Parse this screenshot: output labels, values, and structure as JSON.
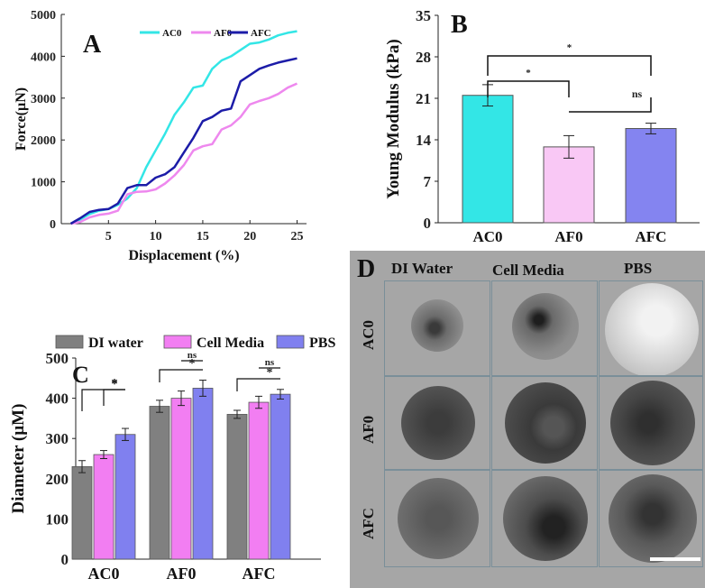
{
  "panels": {
    "a": {
      "letter": "A"
    },
    "b": {
      "letter": "B"
    },
    "c": {
      "letter": "C"
    },
    "d": {
      "letter": "D"
    }
  },
  "chart_data": [
    {
      "id": "A",
      "type": "line",
      "xlabel": "Displacement (%)",
      "ylabel": "Force(µN)",
      "xlim": [
        0,
        26
      ],
      "ylim": [
        0,
        5000
      ],
      "x_ticks": [
        "5",
        "10",
        "15",
        "20",
        "25"
      ],
      "y_ticks": [
        "0",
        "1000",
        "2000",
        "3000",
        "4000",
        "5000"
      ],
      "legend_position": "top",
      "series": [
        {
          "name": "AC0",
          "color": "#33e6e6",
          "x": [
            1,
            2,
            3,
            4,
            5,
            6,
            7,
            8,
            9,
            10,
            11,
            12,
            13,
            14,
            15,
            16,
            17,
            18,
            19,
            20,
            21,
            22,
            23,
            24,
            25
          ],
          "y": [
            0,
            100,
            230,
            310,
            350,
            450,
            600,
            850,
            1350,
            1750,
            2150,
            2600,
            2900,
            3250,
            3300,
            3700,
            3900,
            4000,
            4150,
            4300,
            4330,
            4400,
            4500,
            4560,
            4600
          ]
        },
        {
          "name": "AF0",
          "color": "#ee88ee",
          "x": [
            1,
            2,
            3,
            4,
            5,
            6,
            7,
            8,
            9,
            10,
            11,
            12,
            13,
            14,
            15,
            16,
            17,
            18,
            19,
            20,
            21,
            22,
            23,
            24,
            25
          ],
          "y": [
            0,
            40,
            150,
            210,
            240,
            310,
            700,
            760,
            770,
            820,
            960,
            1150,
            1400,
            1750,
            1850,
            1900,
            2250,
            2350,
            2550,
            2850,
            2930,
            3000,
            3100,
            3250,
            3350
          ]
        },
        {
          "name": "AFC",
          "color": "#1c1ca8",
          "x": [
            1,
            2,
            3,
            4,
            5,
            6,
            7,
            8,
            9,
            10,
            11,
            12,
            13,
            14,
            15,
            16,
            17,
            18,
            19,
            20,
            21,
            22,
            23,
            24,
            25
          ],
          "y": [
            0,
            130,
            280,
            330,
            350,
            480,
            850,
            920,
            920,
            1100,
            1180,
            1350,
            1700,
            2050,
            2450,
            2550,
            2700,
            2750,
            3400,
            3550,
            3700,
            3780,
            3850,
            3900,
            3950
          ]
        }
      ]
    },
    {
      "id": "B",
      "type": "bar",
      "ylabel": "Young Modulus (kPa)",
      "ylim": [
        0,
        35
      ],
      "y_ticks": [
        "0",
        "7",
        "14",
        "21",
        "28",
        "35"
      ],
      "categories": [
        "AC0",
        "AF0",
        "AFC"
      ],
      "values": [
        21.5,
        12.8,
        15.9
      ],
      "errors": [
        1.8,
        1.9,
        0.9
      ],
      "colors": [
        "#33e6e6",
        "#f9c8f5",
        "#8484f0"
      ],
      "significance": [
        {
          "from": "AC0",
          "to": "AFC",
          "label": "*"
        },
        {
          "from": "AC0",
          "to": "AF0",
          "label": "*"
        },
        {
          "from": "AF0",
          "to": "AFC",
          "label": "ns"
        }
      ]
    },
    {
      "id": "C",
      "type": "bar",
      "ylabel": "Diameter (µM)",
      "ylim": [
        0,
        500
      ],
      "y_ticks": [
        "0",
        "100",
        "200",
        "300",
        "400",
        "500"
      ],
      "categories": [
        "AC0",
        "AF0",
        "AFC"
      ],
      "legend_position": "top",
      "series": [
        {
          "name": "DI water",
          "color": "#808080",
          "values": [
            230,
            380,
            360
          ],
          "errors": [
            15,
            15,
            10
          ]
        },
        {
          "name": "Cell Media",
          "color": "#f27ef2",
          "values": [
            260,
            400,
            390
          ],
          "errors": [
            10,
            18,
            15
          ]
        },
        {
          "name": "PBS",
          "color": "#8080ef",
          "values": [
            310,
            425,
            410
          ],
          "errors": [
            15,
            20,
            12
          ]
        }
      ],
      "significance": [
        {
          "group": "AC0",
          "from": "DI water",
          "to": "PBS",
          "label": "*"
        },
        {
          "group": "AC0",
          "from": "Cell Media",
          "to": "PBS",
          "label": "*"
        },
        {
          "group": "AF0",
          "from": "DI water",
          "to": "PBS",
          "label": "*"
        },
        {
          "group": "AF0",
          "from": "Cell Media",
          "to": "PBS",
          "label": "ns"
        },
        {
          "group": "AFC",
          "from": "DI water",
          "to": "PBS",
          "label": "*"
        },
        {
          "group": "AFC",
          "from": "Cell Media",
          "to": "PBS",
          "label": "ns"
        }
      ]
    }
  ],
  "panel_d": {
    "columns": [
      "DI Water",
      "Cell Media",
      "PBS"
    ],
    "rows": [
      "AC0",
      "AF0",
      "AFC"
    ]
  }
}
